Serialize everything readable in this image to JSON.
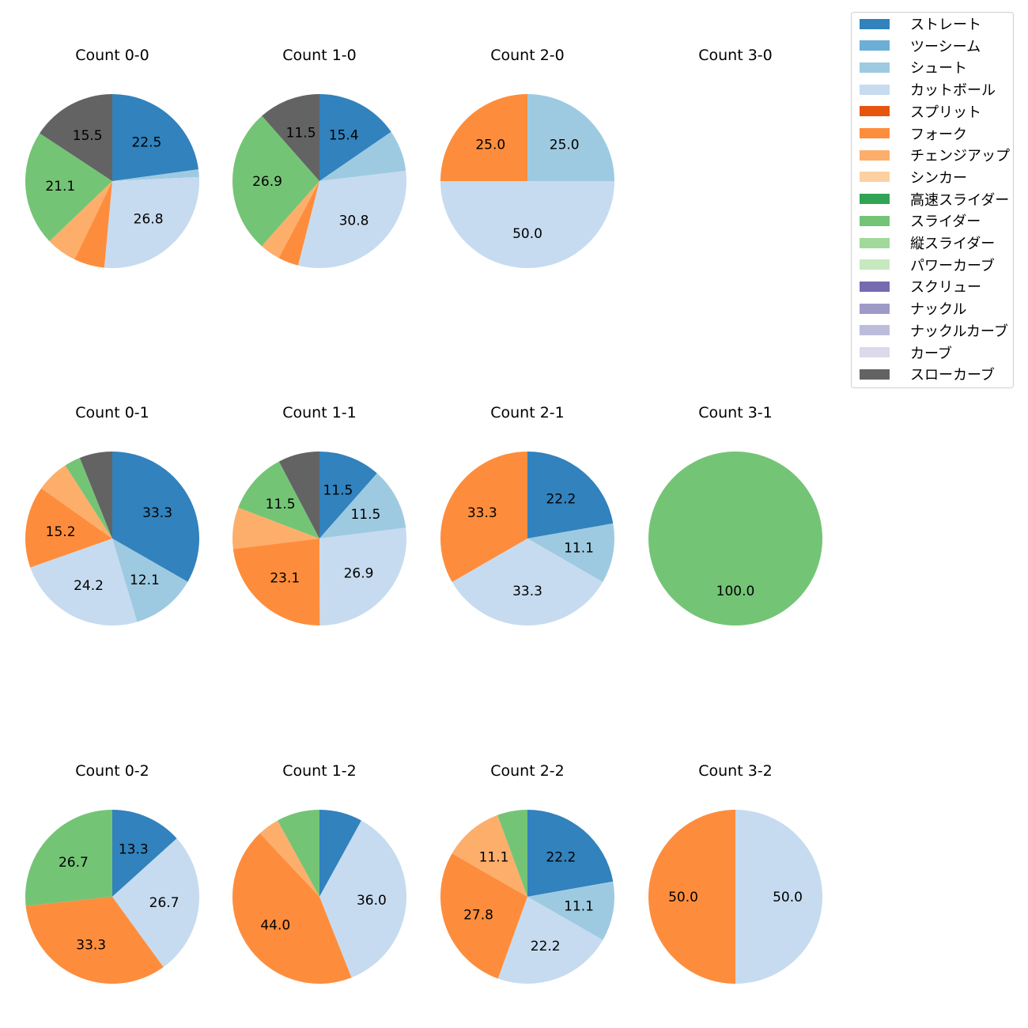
{
  "legend": [
    {
      "label": "ストレート",
      "color": "#3182bd"
    },
    {
      "label": "ツーシーム",
      "color": "#6baed6"
    },
    {
      "label": "シュート",
      "color": "#9ecae1"
    },
    {
      "label": "カットボール",
      "color": "#c6dbef"
    },
    {
      "label": "スプリット",
      "color": "#e6550d"
    },
    {
      "label": "フォーク",
      "color": "#fd8d3c"
    },
    {
      "label": "チェンジアップ",
      "color": "#fdae6b"
    },
    {
      "label": "シンカー",
      "color": "#fdd0a2"
    },
    {
      "label": "高速スライダー",
      "color": "#31a354"
    },
    {
      "label": "スライダー",
      "color": "#74c476"
    },
    {
      "label": "縦スライダー",
      "color": "#a1d99b"
    },
    {
      "label": "パワーカーブ",
      "color": "#c7e9c0"
    },
    {
      "label": "スクリュー",
      "color": "#756bb1"
    },
    {
      "label": "ナックル",
      "color": "#9e9ac8"
    },
    {
      "label": "ナックルカーブ",
      "color": "#bcbddc"
    },
    {
      "label": "カーブ",
      "color": "#dadaeb"
    },
    {
      "label": "スローカーブ",
      "color": "#636363"
    }
  ],
  "chart_data": [
    {
      "type": "pie",
      "title": "Count 0-0",
      "slices": [
        {
          "pitch": "ストレート",
          "value": 22.5,
          "label": "22.5"
        },
        {
          "pitch": "シュート",
          "value": 1.4,
          "label": ""
        },
        {
          "pitch": "カットボール",
          "value": 26.8,
          "label": "26.8"
        },
        {
          "pitch": "フォーク",
          "value": 5.6,
          "label": ""
        },
        {
          "pitch": "チェンジアップ",
          "value": 5.6,
          "label": ""
        },
        {
          "pitch": "スライダー",
          "value": 21.1,
          "label": "21.1"
        },
        {
          "pitch": "スローカーブ",
          "value": 15.5,
          "label": "15.5"
        }
      ]
    },
    {
      "type": "pie",
      "title": "Count 1-0",
      "slices": [
        {
          "pitch": "ストレート",
          "value": 15.4,
          "label": "15.4"
        },
        {
          "pitch": "シュート",
          "value": 7.7,
          "label": ""
        },
        {
          "pitch": "カットボール",
          "value": 30.8,
          "label": "30.8"
        },
        {
          "pitch": "フォーク",
          "value": 3.8,
          "label": ""
        },
        {
          "pitch": "チェンジアップ",
          "value": 3.8,
          "label": ""
        },
        {
          "pitch": "スライダー",
          "value": 26.9,
          "label": "26.9"
        },
        {
          "pitch": "スローカーブ",
          "value": 11.5,
          "label": "11.5"
        }
      ]
    },
    {
      "type": "pie",
      "title": "Count 2-0",
      "slices": [
        {
          "pitch": "シュート",
          "value": 25.0,
          "label": "25.0"
        },
        {
          "pitch": "カットボール",
          "value": 50.0,
          "label": "50.0"
        },
        {
          "pitch": "フォーク",
          "value": 25.0,
          "label": "25.0"
        }
      ]
    },
    {
      "type": "pie",
      "title": "Count 3-0",
      "slices": []
    },
    {
      "type": "pie",
      "title": "Count 0-1",
      "slices": [
        {
          "pitch": "ストレート",
          "value": 33.3,
          "label": "33.3"
        },
        {
          "pitch": "シュート",
          "value": 12.1,
          "label": "12.1"
        },
        {
          "pitch": "カットボール",
          "value": 24.2,
          "label": "24.2"
        },
        {
          "pitch": "フォーク",
          "value": 15.2,
          "label": "15.2"
        },
        {
          "pitch": "チェンジアップ",
          "value": 6.1,
          "label": ""
        },
        {
          "pitch": "スライダー",
          "value": 3.0,
          "label": ""
        },
        {
          "pitch": "スローカーブ",
          "value": 6.1,
          "label": ""
        }
      ]
    },
    {
      "type": "pie",
      "title": "Count 1-1",
      "slices": [
        {
          "pitch": "ストレート",
          "value": 11.5,
          "label": "11.5"
        },
        {
          "pitch": "シュート",
          "value": 11.5,
          "label": "11.5"
        },
        {
          "pitch": "カットボール",
          "value": 26.9,
          "label": "26.9"
        },
        {
          "pitch": "フォーク",
          "value": 23.1,
          "label": "23.1"
        },
        {
          "pitch": "チェンジアップ",
          "value": 7.7,
          "label": ""
        },
        {
          "pitch": "スライダー",
          "value": 11.5,
          "label": "11.5"
        },
        {
          "pitch": "スローカーブ",
          "value": 7.7,
          "label": ""
        }
      ]
    },
    {
      "type": "pie",
      "title": "Count 2-1",
      "slices": [
        {
          "pitch": "ストレート",
          "value": 22.2,
          "label": "22.2"
        },
        {
          "pitch": "シュート",
          "value": 11.1,
          "label": "11.1"
        },
        {
          "pitch": "カットボール",
          "value": 33.3,
          "label": "33.3"
        },
        {
          "pitch": "フォーク",
          "value": 33.3,
          "label": "33.3"
        }
      ]
    },
    {
      "type": "pie",
      "title": "Count 3-1",
      "slices": [
        {
          "pitch": "スライダー",
          "value": 100.0,
          "label": "100.0"
        }
      ]
    },
    {
      "type": "pie",
      "title": "Count 0-2",
      "slices": [
        {
          "pitch": "ストレート",
          "value": 13.3,
          "label": "13.3"
        },
        {
          "pitch": "カットボール",
          "value": 26.7,
          "label": "26.7"
        },
        {
          "pitch": "フォーク",
          "value": 33.3,
          "label": "33.3"
        },
        {
          "pitch": "スライダー",
          "value": 26.7,
          "label": "26.7"
        }
      ]
    },
    {
      "type": "pie",
      "title": "Count 1-2",
      "slices": [
        {
          "pitch": "ストレート",
          "value": 8.0,
          "label": ""
        },
        {
          "pitch": "カットボール",
          "value": 36.0,
          "label": "36.0"
        },
        {
          "pitch": "フォーク",
          "value": 44.0,
          "label": "44.0"
        },
        {
          "pitch": "チェンジアップ",
          "value": 4.0,
          "label": ""
        },
        {
          "pitch": "スライダー",
          "value": 8.0,
          "label": ""
        }
      ]
    },
    {
      "type": "pie",
      "title": "Count 2-2",
      "slices": [
        {
          "pitch": "ストレート",
          "value": 22.2,
          "label": "22.2"
        },
        {
          "pitch": "シュート",
          "value": 11.1,
          "label": "11.1"
        },
        {
          "pitch": "カットボール",
          "value": 22.2,
          "label": "22.2"
        },
        {
          "pitch": "フォーク",
          "value": 27.8,
          "label": "27.8"
        },
        {
          "pitch": "チェンジアップ",
          "value": 11.1,
          "label": "11.1"
        },
        {
          "pitch": "スライダー",
          "value": 5.6,
          "label": ""
        }
      ]
    },
    {
      "type": "pie",
      "title": "Count 3-2",
      "slices": [
        {
          "pitch": "カットボール",
          "value": 50.0,
          "label": "50.0"
        },
        {
          "pitch": "フォーク",
          "value": 50.0,
          "label": "50.0"
        }
      ]
    }
  ]
}
